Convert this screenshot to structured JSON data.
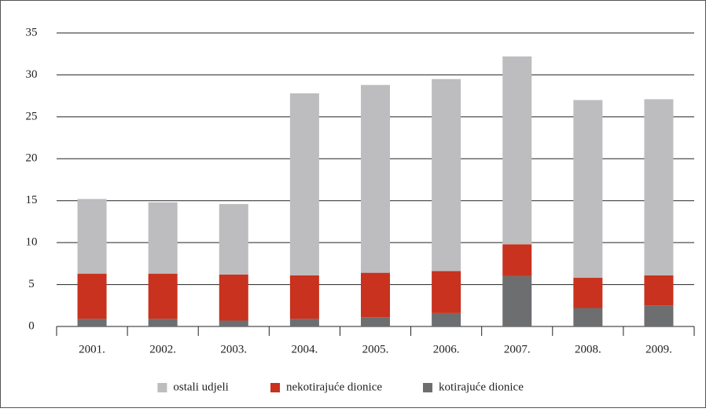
{
  "chart_data": {
    "type": "bar",
    "stacked": true,
    "categories": [
      "2001.",
      "2002.",
      "2003.",
      "2004.",
      "2005.",
      "2006.",
      "2007.",
      "2008.",
      "2009."
    ],
    "series": [
      {
        "name": "ostali udjeli",
        "color": "#bdbdbf",
        "values": [
          8.9,
          8.5,
          8.4,
          21.7,
          22.4,
          22.9,
          22.4,
          21.2,
          21.0
        ]
      },
      {
        "name": "nekotirajuće dionice",
        "color": "#c8321e",
        "values": [
          5.4,
          5.4,
          5.5,
          5.2,
          5.3,
          5.0,
          3.8,
          3.6,
          3.6
        ]
      },
      {
        "name": "kotirajuće dionice",
        "color": "#6d6e70",
        "values": [
          0.9,
          0.9,
          0.7,
          0.9,
          1.1,
          1.6,
          6.0,
          2.2,
          2.5
        ]
      }
    ],
    "ylim": [
      0,
      35
    ],
    "yticks": [
      0,
      5,
      10,
      15,
      20,
      25,
      30,
      35
    ],
    "grid": true,
    "legend": "bottom"
  }
}
